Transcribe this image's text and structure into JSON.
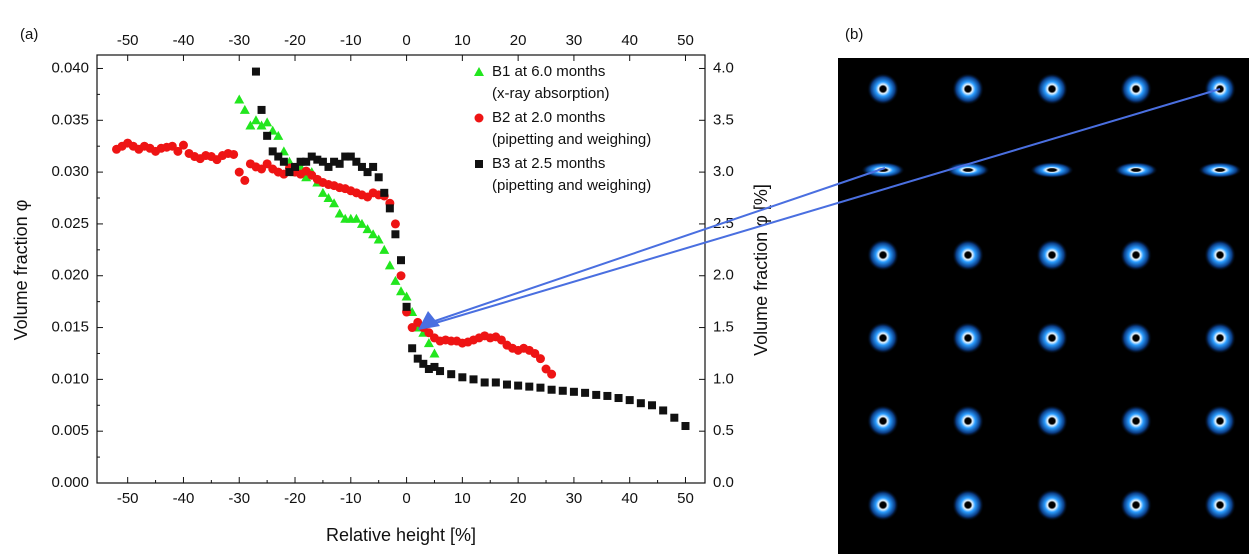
{
  "chart_data": {
    "type": "scatter",
    "panel_labels": [
      "(a)",
      "(b)"
    ],
    "xlabel": "Relative height [%]",
    "ylabel": "Volume fraction φ",
    "y2label": "Volume fraction φ [%]",
    "xlim": [
      -55.5,
      53.5
    ],
    "xticks": [
      -50,
      -40,
      -30,
      -20,
      -10,
      0,
      10,
      20,
      30,
      40,
      50
    ],
    "x2ticks": [
      -50,
      -40,
      -30,
      -20,
      -10,
      0,
      10,
      20,
      30,
      40,
      50
    ],
    "ylim": [
      0,
      0.0413
    ],
    "yticks": [
      {
        "value": 0,
        "label": "0.000"
      },
      {
        "value": 0.005,
        "label": "0.005"
      },
      {
        "value": 0.01,
        "label": "0.010"
      },
      {
        "value": 0.015,
        "label": "0.015"
      },
      {
        "value": 0.02,
        "label": "0.020"
      },
      {
        "value": 0.025,
        "label": "0.025"
      },
      {
        "value": 0.03,
        "label": "0.030"
      },
      {
        "value": 0.035,
        "label": "0.035"
      },
      {
        "value": 0.04,
        "label": "0.040"
      }
    ],
    "y2lim": [
      0,
      4.13
    ],
    "y2ticks": [
      {
        "value": 0,
        "label": "0.0"
      },
      {
        "value": 0.5,
        "label": "0.5"
      },
      {
        "value": 1,
        "label": "1.0"
      },
      {
        "value": 1.5,
        "label": "1.5"
      },
      {
        "value": 2,
        "label": "2.0"
      },
      {
        "value": 2.5,
        "label": "2.5"
      },
      {
        "value": 3,
        "label": "3.0"
      },
      {
        "value": 3.5,
        "label": "3.5"
      },
      {
        "value": 4,
        "label": "4.0"
      }
    ],
    "series": [
      {
        "name": "B1 at 6.0 months",
        "description": "(x-ray absorption)",
        "color": "#22e61e",
        "marker": "triangle",
        "x": [
          -30,
          -29,
          -28,
          -27,
          -26,
          -25,
          -24,
          -23,
          -22,
          -21,
          -20,
          -19,
          -18,
          -17,
          -16,
          -15,
          -14,
          -13,
          -12,
          -11,
          -10,
          -9,
          -8,
          -7,
          -6,
          -5,
          -4,
          -3,
          -2,
          -1,
          0,
          1,
          2,
          3,
          4,
          5
        ],
        "values": [
          0.037,
          0.036,
          0.0345,
          0.035,
          0.0345,
          0.0348,
          0.034,
          0.0335,
          0.032,
          0.031,
          0.03,
          0.0305,
          0.0295,
          0.03,
          0.029,
          0.028,
          0.0275,
          0.027,
          0.026,
          0.0255,
          0.0255,
          0.0255,
          0.025,
          0.0245,
          0.024,
          0.0235,
          0.0225,
          0.021,
          0.0195,
          0.0185,
          0.018,
          0.0165,
          0.015,
          0.0145,
          0.0135,
          0.0125
        ]
      },
      {
        "name": "B2 at 2.0 months",
        "description": "(pipetting and weighing)",
        "color": "#ee1414",
        "marker": "circle",
        "x": [
          -52,
          -51,
          -50,
          -49,
          -48,
          -47,
          -46,
          -45,
          -44,
          -43,
          -42,
          -41,
          -40,
          -39,
          -38,
          -37,
          -36,
          -35,
          -34,
          -33,
          -32,
          -31,
          -30,
          -29,
          -28,
          -27,
          -26,
          -25,
          -24,
          -23,
          -22,
          -21,
          -20,
          -19,
          -18,
          -17,
          -16,
          -15,
          -14,
          -13,
          -12,
          -11,
          -10,
          -9,
          -8,
          -7,
          -6,
          -5,
          -4,
          -3,
          -2,
          -1,
          0,
          1,
          2,
          3,
          4,
          5,
          6,
          7,
          8,
          9,
          10,
          11,
          12,
          13,
          14,
          15,
          16,
          17,
          18,
          19,
          20,
          21,
          22,
          23,
          24,
          25,
          26
        ],
        "values": [
          0.0322,
          0.0325,
          0.0328,
          0.0325,
          0.0322,
          0.0325,
          0.0323,
          0.032,
          0.0323,
          0.0324,
          0.0325,
          0.032,
          0.0326,
          0.0318,
          0.0315,
          0.0313,
          0.0316,
          0.0315,
          0.0312,
          0.0316,
          0.0318,
          0.0317,
          0.03,
          0.0292,
          0.0308,
          0.0305,
          0.0303,
          0.0308,
          0.0303,
          0.03,
          0.0298,
          0.0304,
          0.03,
          0.0298,
          0.0301,
          0.0297,
          0.0293,
          0.029,
          0.0288,
          0.0287,
          0.0285,
          0.0284,
          0.0282,
          0.028,
          0.0278,
          0.0276,
          0.028,
          0.0278,
          0.0277,
          0.027,
          0.025,
          0.02,
          0.0165,
          0.015,
          0.0155,
          0.015,
          0.0145,
          0.014,
          0.0137,
          0.0138,
          0.0137,
          0.0137,
          0.0135,
          0.0136,
          0.0138,
          0.014,
          0.0142,
          0.014,
          0.0141,
          0.0138,
          0.0133,
          0.013,
          0.0128,
          0.013,
          0.0128,
          0.0125,
          0.012,
          0.011,
          0.0105
        ]
      },
      {
        "name": "B3 at 2.5 months",
        "description": "(pipetting and weighing)",
        "color": "#111111",
        "marker": "square",
        "x": [
          -27,
          -26,
          -25,
          -24,
          -23,
          -22,
          -21,
          -20,
          -19,
          -18,
          -17,
          -16,
          -15,
          -14,
          -13,
          -12,
          -11,
          -10,
          -9,
          -8,
          -7,
          -6,
          -5,
          -4,
          -3,
          -2,
          -1,
          0,
          1,
          2,
          3,
          4,
          5,
          6,
          8,
          10,
          12,
          14,
          16,
          18,
          20,
          22,
          24,
          26,
          28,
          30,
          32,
          34,
          36,
          38,
          40,
          42,
          44,
          46,
          48,
          50
        ],
        "values": [
          0.0397,
          0.036,
          0.0335,
          0.032,
          0.0315,
          0.031,
          0.03,
          0.0305,
          0.031,
          0.031,
          0.0315,
          0.0312,
          0.031,
          0.0305,
          0.031,
          0.0308,
          0.0315,
          0.0315,
          0.031,
          0.0305,
          0.03,
          0.0305,
          0.0295,
          0.028,
          0.0265,
          0.024,
          0.0215,
          0.017,
          0.013,
          0.012,
          0.0115,
          0.011,
          0.0112,
          0.0108,
          0.0105,
          0.0102,
          0.01,
          0.0097,
          0.0097,
          0.0095,
          0.0094,
          0.0093,
          0.0092,
          0.009,
          0.0089,
          0.0088,
          0.0087,
          0.0085,
          0.0084,
          0.0082,
          0.008,
          0.0077,
          0.0075,
          0.007,
          0.0063,
          0.0055
        ]
      }
    ]
  }
}
